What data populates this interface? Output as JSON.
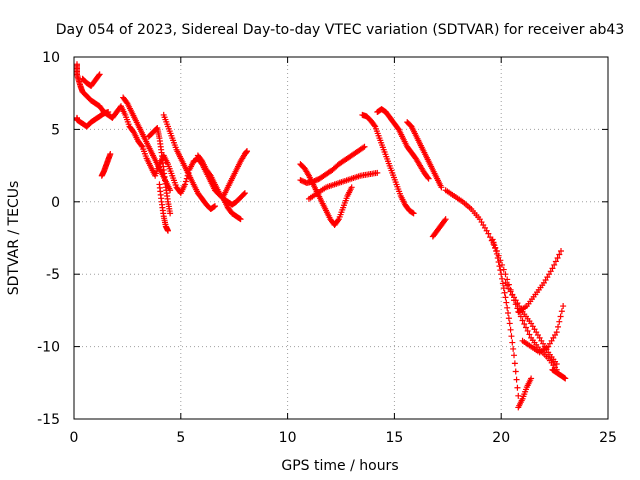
{
  "chart_data": {
    "type": "scatter",
    "title": "Day 054 of 2023, Sidereal Day-to-day VTEC variation (SDTVAR) for receiver ab43",
    "xlabel": "GPS time / hours",
    "ylabel": "SDTVAR / TECUs",
    "xlim": [
      0,
      25
    ],
    "ylim": [
      -15,
      10
    ],
    "xticks": [
      "0",
      "5",
      "10",
      "15",
      "20",
      "25"
    ],
    "yticks": [
      "-15",
      "-10",
      "-5",
      "0",
      "5",
      "10"
    ],
    "grid": true,
    "marker": "plus",
    "color": "#ff0000",
    "series": [
      {
        "name": "s1",
        "x": [
          0.0,
          0.1,
          0.2,
          0.3,
          0.4,
          0.6,
          0.8,
          1.0,
          1.2,
          1.4,
          1.6,
          1.8,
          2.0,
          2.2,
          2.4,
          2.6,
          2.8,
          3.0,
          3.2,
          3.4,
          3.6,
          3.8,
          4.0,
          4.2,
          4.4,
          4.6,
          4.8,
          5.0,
          5.2,
          5.4,
          5.6,
          5.8,
          6.0,
          6.2,
          6.4,
          6.6,
          6.8,
          7.0,
          7.2,
          7.4,
          7.6,
          7.8,
          8.0
        ],
        "y": [
          9.5,
          9.0,
          8.5,
          8.0,
          7.6,
          7.3,
          7.0,
          6.8,
          6.6,
          6.2,
          6.0,
          5.8,
          6.2,
          6.6,
          6.0,
          5.2,
          4.8,
          4.2,
          3.8,
          3.0,
          2.4,
          1.8,
          2.6,
          3.2,
          2.6,
          1.8,
          1.0,
          0.6,
          1.2,
          2.2,
          2.8,
          3.0,
          2.6,
          2.0,
          1.4,
          0.8,
          0.5,
          0.2,
          0.0,
          -0.2,
          0.0,
          0.3,
          0.6
        ]
      },
      {
        "name": "s2",
        "x": [
          0.0,
          0.2,
          0.4,
          0.6,
          0.8,
          1.0,
          1.2,
          1.4,
          1.6
        ],
        "y": [
          5.8,
          5.6,
          5.4,
          5.2,
          5.5,
          5.7,
          5.9,
          6.1,
          6.2
        ]
      },
      {
        "name": "s3",
        "x": [
          0.4,
          0.6,
          0.8,
          1.0,
          1.2
        ],
        "y": [
          8.5,
          8.2,
          8.0,
          8.4,
          8.8
        ]
      },
      {
        "name": "s4",
        "x": [
          1.3,
          1.4,
          1.5,
          1.6,
          1.7
        ],
        "y": [
          1.8,
          2.1,
          2.5,
          2.9,
          3.3
        ]
      },
      {
        "name": "s5",
        "x": [
          2.3,
          2.5,
          2.7,
          2.9,
          3.1,
          3.3,
          3.5,
          3.7,
          3.9,
          4.1,
          4.3,
          4.5
        ],
        "y": [
          7.2,
          6.8,
          6.2,
          5.6,
          5.0,
          4.4,
          3.8,
          3.2,
          2.6,
          2.0,
          1.4,
          0.8
        ]
      },
      {
        "name": "s6",
        "x": [
          3.5,
          3.7,
          3.9,
          4.0,
          4.1,
          4.2,
          4.3,
          4.4,
          4.5
        ],
        "y": [
          4.5,
          4.8,
          5.1,
          4.4,
          3.4,
          2.2,
          1.0,
          0.0,
          -0.8
        ]
      },
      {
        "name": "s7",
        "x": [
          4.0,
          4.1,
          4.2,
          4.3,
          4.4
        ],
        "y": [
          1.2,
          0.0,
          -1.0,
          -1.7,
          -2.0
        ]
      },
      {
        "name": "s8",
        "x": [
          4.2,
          4.4,
          4.6,
          4.8,
          5.0,
          5.2,
          5.4,
          5.6,
          5.8,
          6.0,
          6.2,
          6.4,
          6.6
        ],
        "y": [
          6.0,
          5.2,
          4.4,
          3.6,
          3.0,
          2.4,
          1.8,
          1.2,
          0.6,
          0.2,
          -0.2,
          -0.5,
          -0.3
        ]
      },
      {
        "name": "s9",
        "x": [
          5.8,
          6.0,
          6.2,
          6.4,
          6.6,
          6.8,
          7.0,
          7.2,
          7.4,
          7.6,
          7.8
        ],
        "y": [
          3.2,
          2.8,
          2.2,
          1.8,
          1.2,
          0.6,
          0.2,
          -0.4,
          -0.8,
          -1.0,
          -1.2
        ]
      },
      {
        "name": "s10",
        "x": [
          7.0,
          7.2,
          7.4,
          7.6,
          7.8,
          8.0,
          8.1
        ],
        "y": [
          0.4,
          1.0,
          1.6,
          2.2,
          2.8,
          3.3,
          3.5
        ]
      },
      {
        "name": "s11",
        "x": [
          10.6,
          10.8,
          11.0,
          11.2,
          11.4,
          11.6,
          11.8,
          12.0,
          12.2,
          12.4,
          12.6,
          12.8,
          13.0
        ],
        "y": [
          2.6,
          2.3,
          1.8,
          1.2,
          0.6,
          0.0,
          -0.6,
          -1.2,
          -1.6,
          -1.2,
          -0.4,
          0.4,
          1.0
        ]
      },
      {
        "name": "s12",
        "x": [
          10.6,
          10.9,
          11.2,
          11.5,
          11.8,
          12.1,
          12.4,
          12.7,
          13.0,
          13.3,
          13.6
        ],
        "y": [
          1.5,
          1.3,
          1.4,
          1.6,
          1.9,
          2.2,
          2.6,
          2.9,
          3.2,
          3.5,
          3.8
        ]
      },
      {
        "name": "s13",
        "x": [
          11.0,
          11.4,
          11.8,
          12.2,
          12.6,
          13.0,
          13.4,
          13.8,
          14.2
        ],
        "y": [
          0.2,
          0.6,
          1.0,
          1.2,
          1.4,
          1.6,
          1.8,
          1.9,
          2.0
        ]
      },
      {
        "name": "s14",
        "x": [
          13.5,
          13.7,
          13.9,
          14.1,
          14.3,
          14.5,
          14.7,
          14.9,
          15.1,
          15.3,
          15.5,
          15.7,
          15.9
        ],
        "y": [
          6.0,
          5.9,
          5.6,
          5.2,
          4.4,
          3.6,
          2.8,
          2.0,
          1.2,
          0.4,
          -0.2,
          -0.6,
          -0.8
        ]
      },
      {
        "name": "s15",
        "x": [
          14.2,
          14.4,
          14.6,
          14.8,
          15.0,
          15.2,
          15.4,
          15.6,
          15.8,
          16.0,
          16.2,
          16.4,
          16.6
        ],
        "y": [
          6.2,
          6.4,
          6.2,
          5.8,
          5.4,
          5.0,
          4.4,
          3.8,
          3.4,
          3.0,
          2.5,
          2.0,
          1.6
        ]
      },
      {
        "name": "s16",
        "x": [
          15.6,
          15.8,
          16.0,
          16.2,
          16.4,
          16.6,
          16.8,
          17.0,
          17.2
        ],
        "y": [
          5.5,
          5.2,
          4.6,
          4.0,
          3.4,
          2.8,
          2.2,
          1.6,
          1.0
        ]
      },
      {
        "name": "s17",
        "x": [
          16.8,
          17.0,
          17.2,
          17.4
        ],
        "y": [
          -2.4,
          -2.0,
          -1.6,
          -1.2
        ]
      },
      {
        "name": "s18",
        "x": [
          17.4,
          17.8,
          18.2,
          18.6,
          19.0,
          19.4,
          19.8,
          20.2,
          20.6,
          21.0,
          21.4,
          21.8,
          22.2,
          22.6
        ],
        "y": [
          0.8,
          0.4,
          0.0,
          -0.5,
          -1.2,
          -2.2,
          -3.4,
          -5.0,
          -6.8,
          -8.2,
          -9.4,
          -10.2,
          -10.8,
          -11.6
        ]
      },
      {
        "name": "s19",
        "x": [
          19.6,
          19.8,
          20.0,
          20.2,
          20.4,
          20.6,
          20.8
        ],
        "y": [
          -2.6,
          -3.6,
          -5.0,
          -6.6,
          -8.4,
          -10.6,
          -13.4
        ]
      },
      {
        "name": "s20",
        "x": [
          20.2,
          20.6,
          21.0,
          21.4,
          21.8,
          22.2,
          22.6
        ],
        "y": [
          -5.6,
          -6.6,
          -7.6,
          -8.4,
          -9.4,
          -10.4,
          -11.2
        ]
      },
      {
        "name": "s21",
        "x": [
          20.8,
          21.2,
          21.6,
          22.0,
          22.4,
          22.8
        ],
        "y": [
          -7.6,
          -7.2,
          -6.4,
          -5.6,
          -4.6,
          -3.4
        ]
      },
      {
        "name": "s22",
        "x": [
          21.0,
          21.4,
          21.8,
          22.2,
          22.6,
          22.9
        ],
        "y": [
          -9.6,
          -10.0,
          -10.4,
          -10.0,
          -9.0,
          -7.2
        ]
      },
      {
        "name": "s23",
        "x": [
          20.8,
          21.0,
          21.2,
          21.4
        ],
        "y": [
          -14.2,
          -13.6,
          -12.8,
          -12.2
        ]
      },
      {
        "name": "s24",
        "x": [
          22.4,
          22.6,
          22.8,
          23.0
        ],
        "y": [
          -11.6,
          -11.8,
          -12.0,
          -12.2
        ]
      }
    ]
  }
}
